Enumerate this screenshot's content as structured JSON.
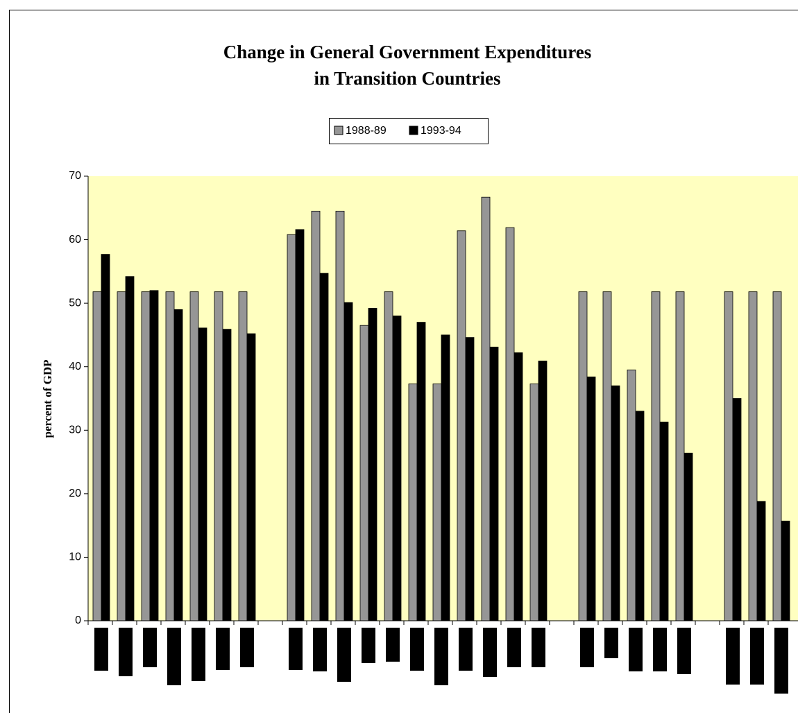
{
  "chart_data": {
    "type": "bar",
    "title": "Change in General Government Expenditures",
    "subtitle": "in Transition Countries",
    "y_label": "percent of GDP",
    "categories": [
      null,
      null,
      null,
      null,
      null,
      null,
      null,
      null,
      null,
      null,
      null,
      null,
      null,
      null,
      null,
      null,
      null,
      null,
      null,
      null,
      null,
      null,
      null,
      null,
      null,
      null,
      null,
      null,
      null
    ],
    "series": [
      {
        "name": "1988-89",
        "color": "#969696",
        "values": [
          51.8,
          51.8,
          51.8,
          51.8,
          51.8,
          51.8,
          51.8,
          null,
          60.8,
          64.5,
          64.5,
          46.5,
          51.8,
          37.3,
          37.3,
          61.4,
          66.7,
          61.9,
          37.3,
          null,
          51.8,
          51.8,
          39.5,
          51.8,
          51.8,
          null,
          51.8,
          51.8,
          51.8
        ]
      },
      {
        "name": "1993-94",
        "color": "#000000",
        "values": [
          57.7,
          54.2,
          52,
          49,
          46.1,
          45.9,
          45.2,
          null,
          61.6,
          54.7,
          50.1,
          49.2,
          48,
          47,
          45,
          44.6,
          43.1,
          42.2,
          40.9,
          null,
          38.4,
          37,
          33,
          31.3,
          26.4,
          null,
          35,
          18.8,
          15.7
        ]
      }
    ],
    "ylim": [
      0,
      70
    ],
    "yticks": [
      0,
      10,
      20,
      30,
      40,
      50,
      60,
      70
    ],
    "plot_background": "#ffffc0"
  }
}
